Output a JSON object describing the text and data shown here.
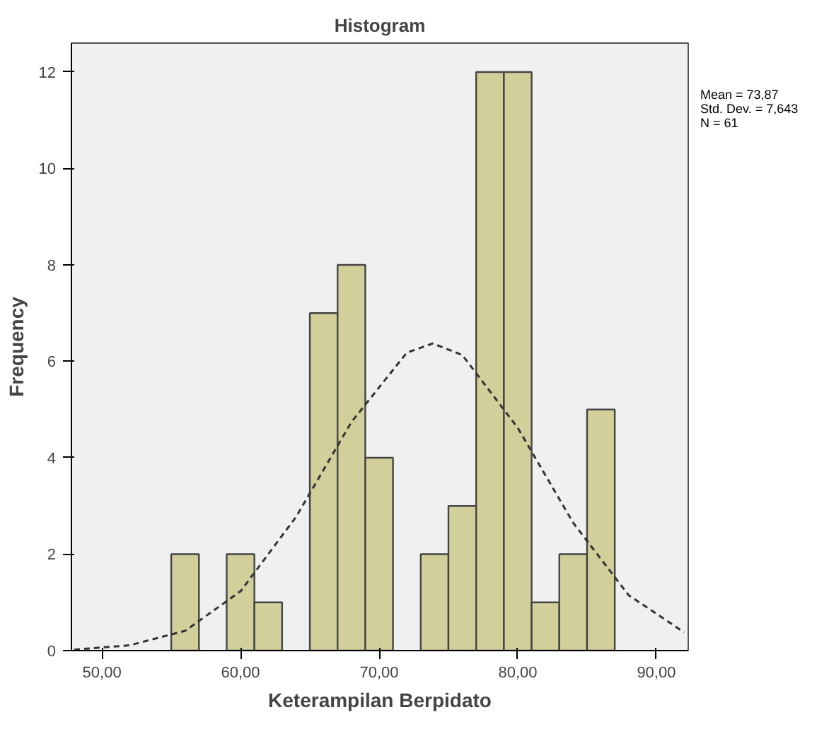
{
  "chart_data": {
    "type": "histogram",
    "title": "Histogram",
    "xlabel": "Keterampilan Berpidato",
    "ylabel": "Frequency",
    "bins": [
      55,
      57,
      59,
      61,
      63,
      65,
      67,
      69,
      71,
      73,
      75,
      77,
      79,
      81,
      83,
      85,
      87
    ],
    "values": [
      2,
      0,
      2,
      1,
      0,
      7,
      8,
      4,
      0,
      2,
      3,
      12,
      12,
      1,
      2,
      5
    ],
    "color": "#d3cf9a",
    "series": [
      {
        "type": "line",
        "color": "#333333",
        "line_style": "dashed",
        "x": [
          48,
          52,
          56,
          60,
          64,
          68,
          72,
          73.87,
          76,
          80,
          84,
          88,
          92
        ],
        "values": [
          0.02,
          0.11,
          0.41,
          1.23,
          2.77,
          4.74,
          6.18,
          6.37,
          6.13,
          4.62,
          2.65,
          1.15,
          0.38
        ]
      }
    ],
    "xlim": [
      47.8,
      92.3
    ],
    "xticks": [
      {
        "value": 50,
        "label": "50,00"
      },
      {
        "value": 60,
        "label": "60,00"
      },
      {
        "value": 70,
        "label": "70,00"
      },
      {
        "value": 80,
        "label": "80,00"
      },
      {
        "value": 90,
        "label": "90,00"
      }
    ],
    "ylim": [
      0,
      12.6
    ],
    "yticks": [
      0,
      2,
      4,
      6,
      8,
      10,
      12
    ],
    "grid": false,
    "annotations": [
      "Mean = 73,87",
      "Std. Dev. = 7,643",
      "N = 61"
    ]
  }
}
